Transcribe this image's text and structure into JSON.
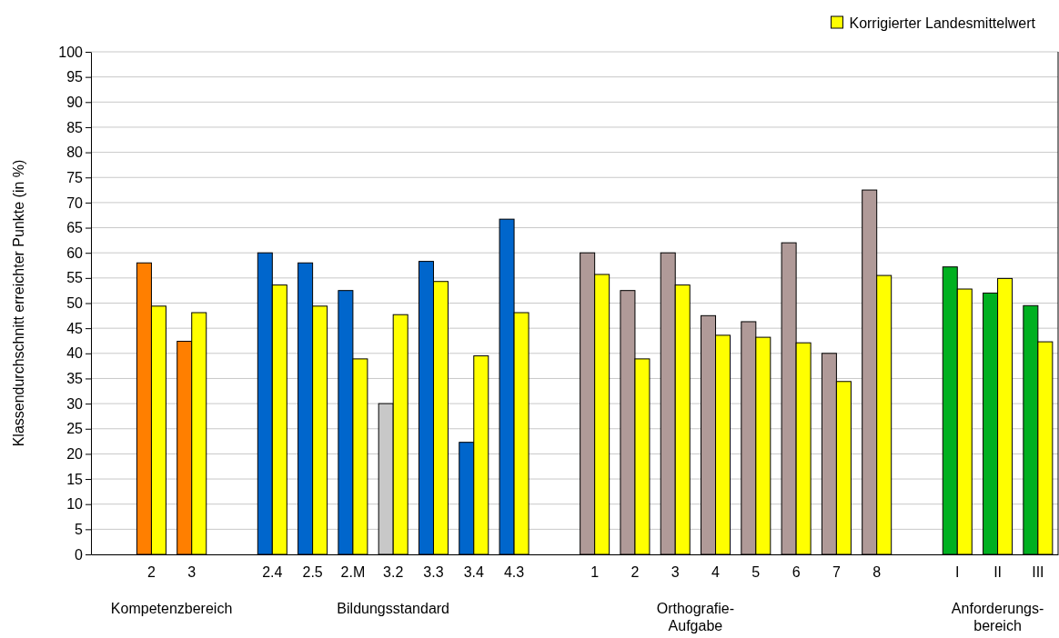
{
  "chart_data": {
    "type": "bar",
    "ylabel": "Klassendurchschnitt erreichter Punkte (in %)",
    "categories": [
      null,
      "2",
      "3",
      null,
      "2.4",
      "2.5",
      "2.M",
      "3.2",
      "3.3",
      "3.4",
      "4.3",
      null,
      "1",
      "2",
      "3",
      "4",
      "5",
      "6",
      "7",
      "8",
      null,
      "I",
      "II",
      "III"
    ],
    "series": [
      {
        "colors": [
          null,
          "#ff7f00",
          "#ff7f00",
          null,
          "#0066cc",
          "#0066cc",
          "#0066cc",
          "#c8c8c8",
          "#0066cc",
          "#0066cc",
          "#0066cc",
          null,
          "#b09a98",
          "#b09a98",
          "#b09a98",
          "#b09a98",
          "#b09a98",
          "#b09a98",
          "#b09a98",
          "#b09a98",
          null,
          "#00b020",
          "#00b020",
          "#00b020"
        ],
        "values": [
          null,
          58,
          42.4,
          null,
          60,
          58,
          52.5,
          30,
          58.3,
          22.3,
          66.7,
          null,
          60,
          52.5,
          60,
          47.5,
          46.3,
          62,
          40,
          72.5,
          null,
          57.2,
          52,
          49.5
        ]
      },
      {
        "name": "Korrigierter Landesmittelwert",
        "color": "#ffff00",
        "values": [
          null,
          49.4,
          48.1,
          null,
          53.6,
          49.4,
          38.9,
          47.7,
          54.3,
          39.5,
          48.1,
          null,
          55.7,
          38.9,
          53.6,
          43.6,
          43.2,
          42.1,
          34.4,
          55.5,
          null,
          52.8,
          54.9,
          42.3
        ]
      }
    ],
    "ylim": [
      0,
      100
    ],
    "yticks": [
      0,
      5,
      10,
      15,
      20,
      25,
      30,
      35,
      40,
      45,
      50,
      55,
      60,
      65,
      70,
      75,
      80,
      85,
      90,
      95,
      100
    ],
    "grid": "y",
    "legend": "top right",
    "annotations": [
      "Kompetenzbereich",
      "Bildungsstandard",
      "Orthografie-\nAufgabe",
      "Anforderungs-\nbereich"
    ]
  }
}
